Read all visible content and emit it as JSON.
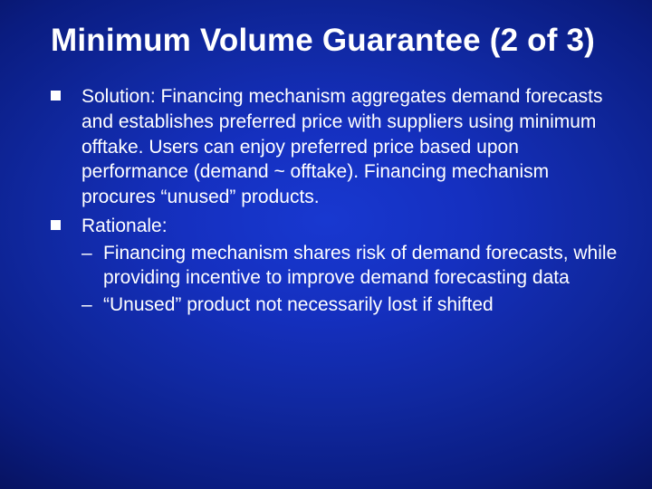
{
  "slide": {
    "title": "Minimum Volume Guarantee (2 of 3)",
    "title_fontsize": 35,
    "title_color": "#ffffff",
    "body_fontsize": 21,
    "body_color": "#ffffff",
    "bullet_marker_color": "#ffffff",
    "background_gradient": [
      "#1838d0",
      "#0a1c80",
      "#020620"
    ],
    "bullets": [
      {
        "text": "Solution: Financing mechanism aggregates demand forecasts and establishes preferred price with suppliers using minimum offtake. Users can enjoy preferred price based upon performance (demand ~ offtake). Financing mechanism procures “unused” products."
      },
      {
        "text": "Rationale:",
        "sub": [
          "Financing mechanism shares risk of demand forecasts, while providing incentive to improve demand forecasting data",
          "“Unused” product not necessarily lost if shifted"
        ]
      }
    ]
  }
}
